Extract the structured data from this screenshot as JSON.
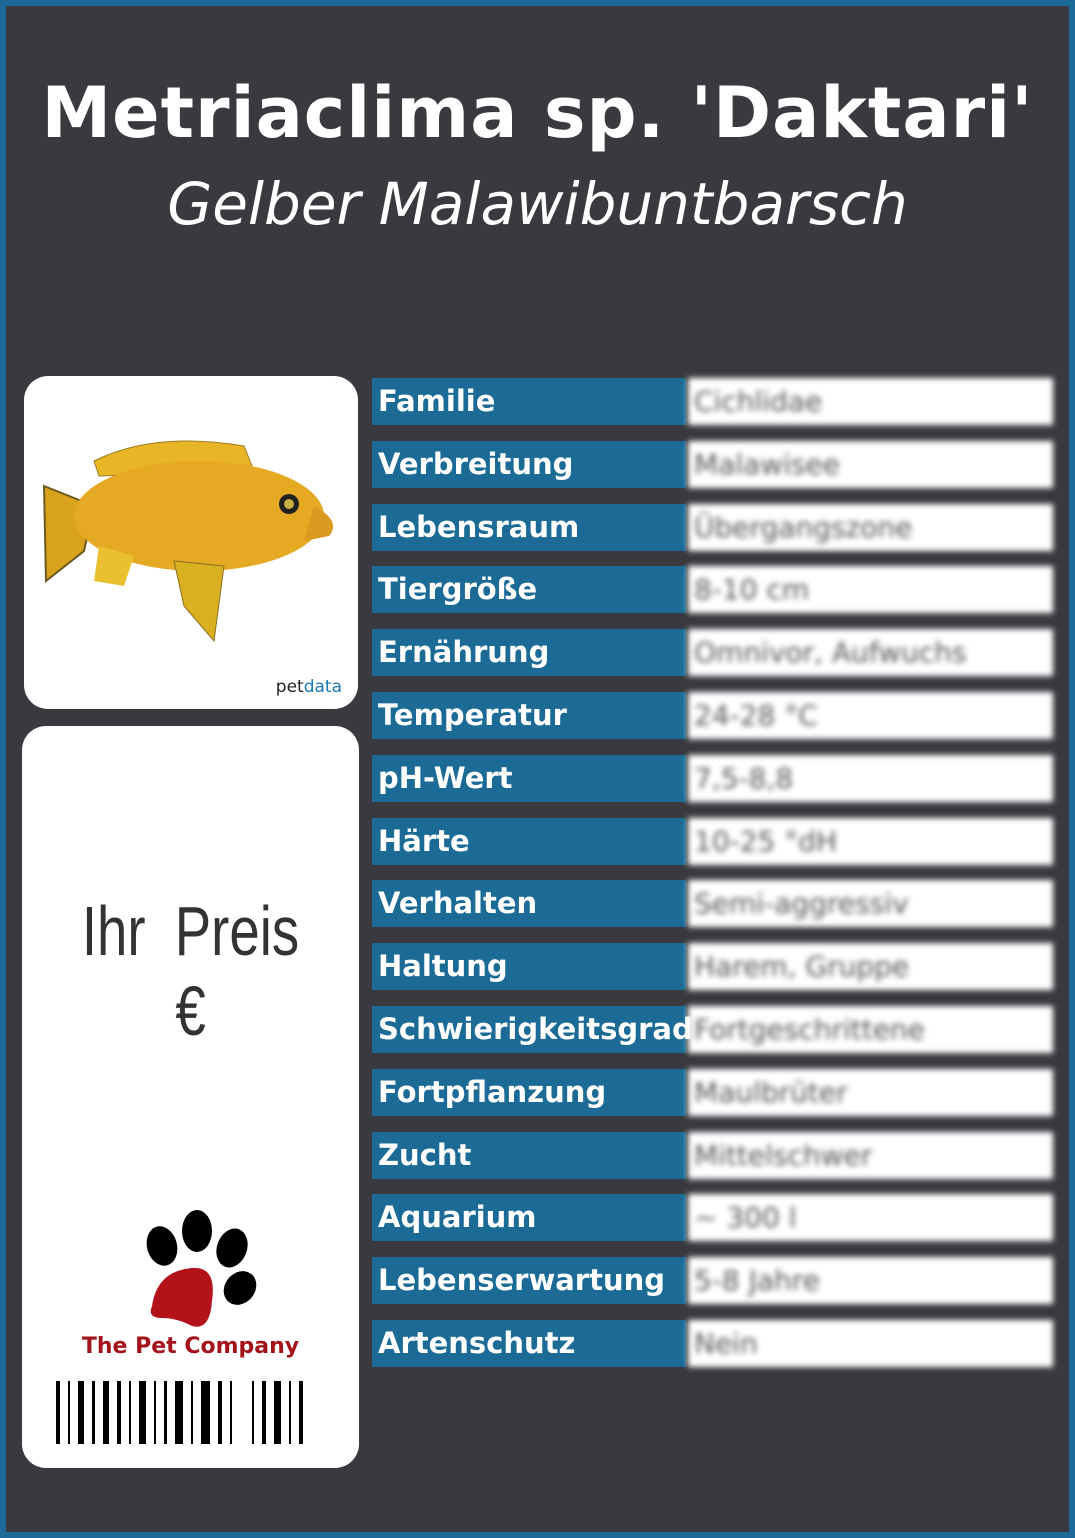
{
  "header": {
    "title": "Metriaclima sp. 'Daktari'",
    "subtitle": "Gelber Malawibuntbarsch"
  },
  "image_card": {
    "brand_prefix": "pet",
    "brand_suffix": "data",
    "image": "yellow-cichlid-fish"
  },
  "price_card": {
    "price_label": "Ihr Preis €",
    "company": "The Pet Company",
    "logo": "paw-print-icon",
    "barcode": "barcode"
  },
  "colors": {
    "border": "#1b6a98",
    "background": "#393a3f",
    "label_bg": "#1b6b96",
    "company": "#a4131b"
  },
  "attributes": [
    {
      "label": "Familie",
      "value": "Cichlidae"
    },
    {
      "label": "Verbreitung",
      "value": "Malawisee"
    },
    {
      "label": "Lebensraum",
      "value": "Übergangszone"
    },
    {
      "label": "Tiergröße",
      "value": "8-10 cm"
    },
    {
      "label": "Ernährung",
      "value": "Omnivor, Aufwuchs"
    },
    {
      "label": "Temperatur",
      "value": "24-28 °C"
    },
    {
      "label": "pH-Wert",
      "value": "7,5-8,8"
    },
    {
      "label": "Härte",
      "value": "10-25 °dH"
    },
    {
      "label": "Verhalten",
      "value": "Semi-aggressiv"
    },
    {
      "label": "Haltung",
      "value": "Harem, Gruppe"
    },
    {
      "label": "Schwierigkeitsgrad",
      "value": "Fortgeschrittene"
    },
    {
      "label": "Fortpflanzung",
      "value": "Maulbrüter"
    },
    {
      "label": "Zucht",
      "value": "Mittelschwer"
    },
    {
      "label": "Aquarium",
      "value": "~ 300 l"
    },
    {
      "label": "Lebenserwartung",
      "value": "5-8 Jahre"
    },
    {
      "label": "Artenschutz",
      "value": "Nein"
    }
  ]
}
